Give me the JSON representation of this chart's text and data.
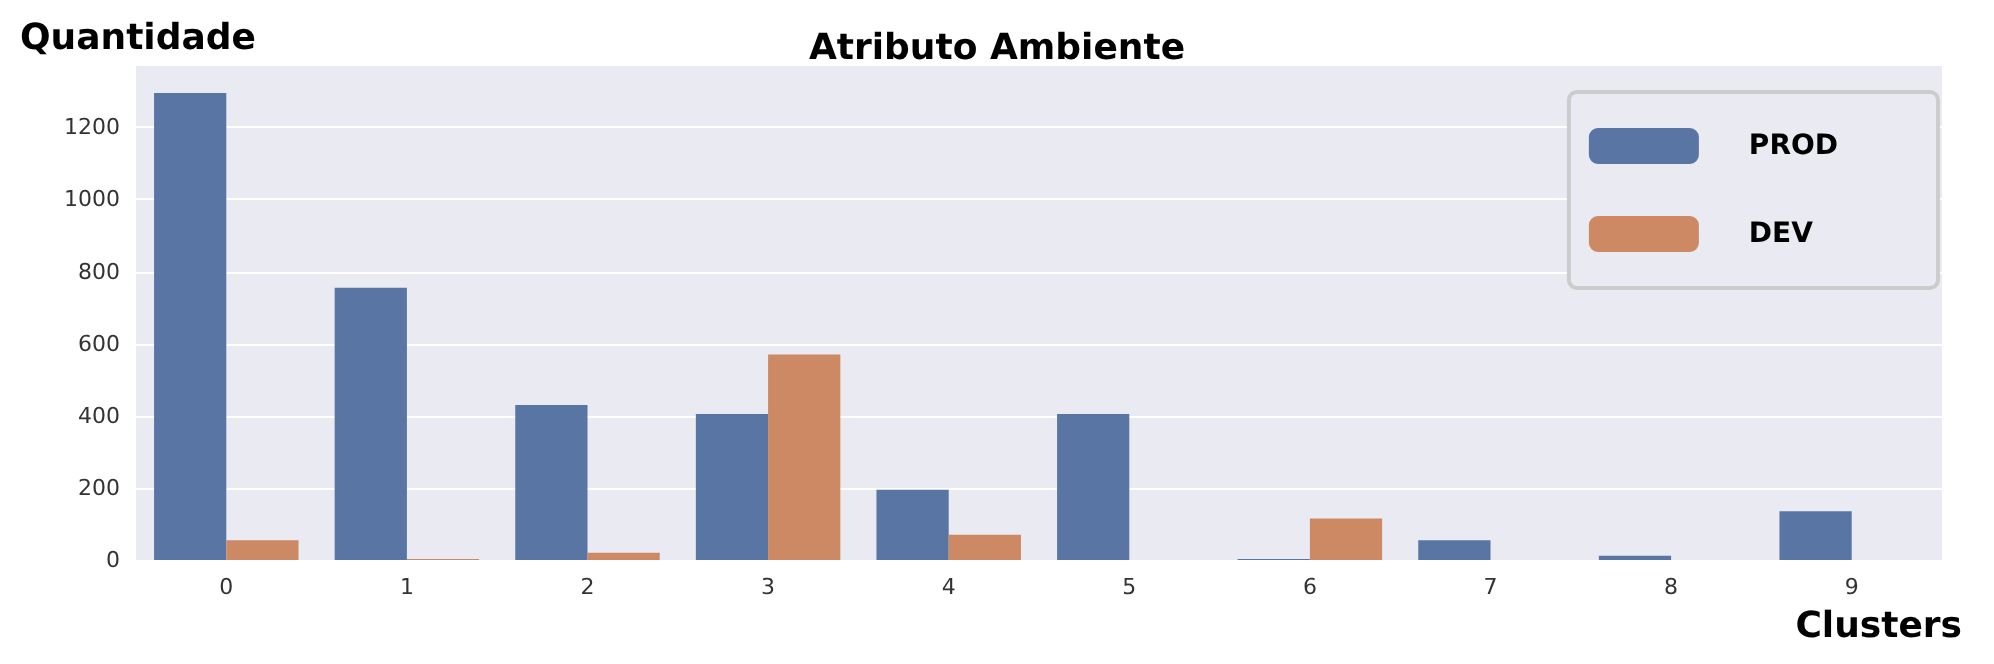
{
  "chart_data": {
    "type": "bar",
    "title": "Atributo Ambiente",
    "xlabel": "Clusters",
    "ylabel": "Quantidade",
    "categories": [
      "0",
      "1",
      "2",
      "3",
      "4",
      "5",
      "6",
      "7",
      "8",
      "9"
    ],
    "series": [
      {
        "name": "PROD",
        "color": "#5875a4",
        "values": [
          1295,
          755,
          430,
          405,
          195,
          405,
          3,
          55,
          12,
          135
        ]
      },
      {
        "name": "DEV",
        "color": "#cc8963",
        "values": [
          55,
          3,
          20,
          570,
          70,
          null,
          115,
          null,
          null,
          null
        ]
      }
    ],
    "ylim": [
      0,
      1370
    ],
    "yticks": [
      0,
      200,
      400,
      600,
      800,
      1000,
      1200
    ],
    "grid": "y",
    "legend": "top right"
  }
}
